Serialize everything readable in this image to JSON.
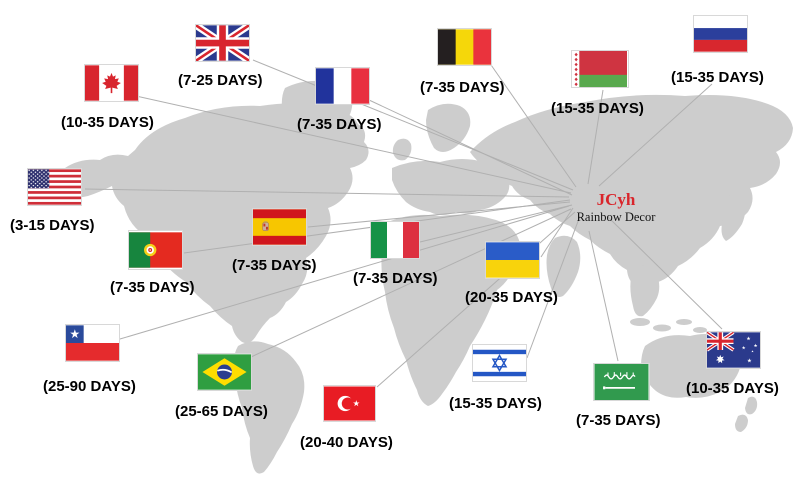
{
  "brand": {
    "name": "JCyh",
    "subtitle": "Rainbow Decor"
  },
  "colors": {
    "brand_red": "#d9252b",
    "map_gray": "#cdcdcd",
    "line_gray": "#b0b0b0",
    "label_black": "#000000"
  },
  "countries": [
    {
      "id": "uk",
      "country": "United Kingdom",
      "days": "(7-25 DAYS)"
    },
    {
      "id": "canada",
      "country": "Canada",
      "days": "(10-35 DAYS)"
    },
    {
      "id": "france",
      "country": "France",
      "days": "(7-35 DAYS)"
    },
    {
      "id": "belgium",
      "country": "Belgium",
      "days": "(7-35 DAYS)"
    },
    {
      "id": "belarus",
      "country": "Belarus",
      "days": "(15-35 DAYS)"
    },
    {
      "id": "russia",
      "country": "Russia",
      "days": "(15-35 DAYS)"
    },
    {
      "id": "usa",
      "country": "United States",
      "days": "(3-15 DAYS)"
    },
    {
      "id": "portugal",
      "country": "Portugal",
      "days": "(7-35 DAYS)"
    },
    {
      "id": "spain",
      "country": "Spain",
      "days": "(7-35 DAYS)"
    },
    {
      "id": "italy",
      "country": "Italy",
      "days": "(7-35 DAYS)"
    },
    {
      "id": "ukraine",
      "country": "Ukraine",
      "days": "(20-35 DAYS)"
    },
    {
      "id": "chile",
      "country": "Chile",
      "days": "(25-90 DAYS)"
    },
    {
      "id": "brazil",
      "country": "Brazil",
      "days": "(25-65 DAYS)"
    },
    {
      "id": "turkey",
      "country": "Turkey",
      "days": "(20-40 DAYS)"
    },
    {
      "id": "israel",
      "country": "Israel",
      "days": "(15-35 DAYS)"
    },
    {
      "id": "saudi_arabia",
      "country": "Saudi Arabia",
      "days": "(7-35 DAYS)"
    },
    {
      "id": "australia",
      "country": "Australia",
      "days": "(10-35 DAYS)"
    }
  ]
}
